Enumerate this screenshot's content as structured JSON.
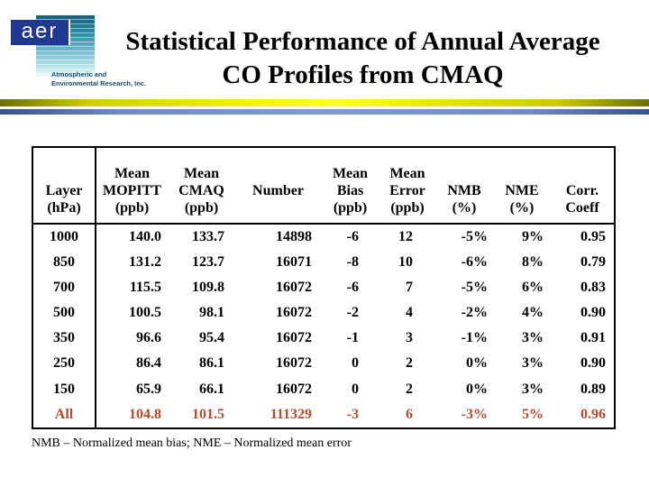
{
  "logo": {
    "acronym": "aer",
    "org_line1": "Atmospheric and",
    "org_line2": "Environmental Research, Inc."
  },
  "title": {
    "line1": "Statistical Performance of Annual Average",
    "line2": "CO Profiles from CMAQ"
  },
  "table": {
    "columns": [
      {
        "lines": [
          "",
          "Layer",
          "(hPa)"
        ]
      },
      {
        "lines": [
          "Mean",
          "MOPITT",
          "(ppb)"
        ]
      },
      {
        "lines": [
          "Mean",
          "CMAQ",
          "(ppb)"
        ]
      },
      {
        "lines": [
          "",
          "Number",
          ""
        ]
      },
      {
        "lines": [
          "Mean",
          "Bias",
          "(ppb)"
        ]
      },
      {
        "lines": [
          "Mean",
          "Error",
          "(ppb)"
        ]
      },
      {
        "lines": [
          "",
          "NMB",
          "(%)"
        ]
      },
      {
        "lines": [
          "",
          "NME",
          "(%)"
        ]
      },
      {
        "lines": [
          "",
          "Corr.",
          "Coeff"
        ]
      }
    ],
    "rows": [
      {
        "cells": [
          "1000",
          "140.0",
          "133.7",
          "14898",
          "-6",
          "12",
          "-5%",
          "9%",
          "0.95"
        ],
        "highlight": false
      },
      {
        "cells": [
          "850",
          "131.2",
          "123.7",
          "16071",
          "-8",
          "10",
          "-6%",
          "8%",
          "0.79"
        ],
        "highlight": false
      },
      {
        "cells": [
          "700",
          "115.5",
          "109.8",
          "16072",
          "-6",
          "7",
          "-5%",
          "6%",
          "0.83"
        ],
        "highlight": false
      },
      {
        "cells": [
          "500",
          "100.5",
          "98.1",
          "16072",
          "-2",
          "4",
          "-2%",
          "4%",
          "0.90"
        ],
        "highlight": false
      },
      {
        "cells": [
          "350",
          "96.6",
          "95.4",
          "16072",
          "-1",
          "3",
          "-1%",
          "3%",
          "0.91"
        ],
        "highlight": false
      },
      {
        "cells": [
          "250",
          "86.4",
          "86.1",
          "16072",
          "0",
          "2",
          "0%",
          "3%",
          "0.90"
        ],
        "highlight": false
      },
      {
        "cells": [
          "150",
          "65.9",
          "66.1",
          "16072",
          "0",
          "2",
          "0%",
          "3%",
          "0.89"
        ],
        "highlight": false
      },
      {
        "cells": [
          "All",
          "104.8",
          "101.5",
          "111329",
          "-3",
          "6",
          "-3%",
          "5%",
          "0.96"
        ],
        "highlight": true
      }
    ]
  },
  "footnote": "NMB – Normalized mean bias; NME – Normalized mean error",
  "colors": {
    "highlight_text": "#B84A2E",
    "logo_navy": "#21398F",
    "logo_teal_dark": "#135F7E",
    "logo_org_text": "#12497A",
    "bar_gold": "#F5F500",
    "bar_blue": "#7E9BD6",
    "table_border": "#000000",
    "title_text": "#000000"
  }
}
